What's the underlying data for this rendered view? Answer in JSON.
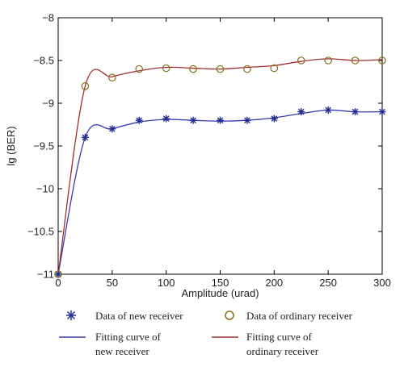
{
  "chart_data": {
    "type": "line",
    "title": "",
    "xlabel": "Amplitude (urad)",
    "ylabel": "lg (BER)",
    "xlim": [
      0,
      300
    ],
    "ylim": [
      -11,
      -8
    ],
    "xticks": [
      0,
      50,
      100,
      150,
      200,
      250,
      300
    ],
    "yticks": [
      -11,
      -10.5,
      -10,
      -9.5,
      -9,
      -8.5,
      -8
    ],
    "x": [
      0,
      25,
      50,
      75,
      100,
      125,
      150,
      175,
      200,
      225,
      250,
      275,
      300
    ],
    "grid": false,
    "legend_position": "bottom",
    "series": [
      {
        "name": "Data of new receiver",
        "kind": "markers",
        "marker": "star",
        "color": "#1f2f8f",
        "values": [
          -11.0,
          -9.4,
          -9.3,
          -9.2,
          -9.18,
          -9.2,
          -9.2,
          -9.2,
          -9.18,
          -9.1,
          -9.08,
          -9.1,
          -9.1
        ]
      },
      {
        "name": "Data of ordinary receiver",
        "kind": "markers",
        "marker": "circle",
        "color": "#8a6d1a",
        "values": [
          -11.0,
          -8.8,
          -8.7,
          -8.6,
          -8.59,
          -8.6,
          -8.6,
          -8.6,
          -8.59,
          -8.5,
          -8.5,
          -8.5,
          -8.5
        ]
      },
      {
        "name": "Fitting curve of new receiver",
        "kind": "line",
        "color": "#3a3ab0",
        "values": [
          -11.0,
          -9.4,
          -9.3,
          -9.22,
          -9.19,
          -9.2,
          -9.21,
          -9.2,
          -9.17,
          -9.12,
          -9.08,
          -9.1,
          -9.1
        ]
      },
      {
        "name": "Fitting curve of ordinary receiver",
        "kind": "line",
        "color": "#a03030",
        "values": [
          -11.0,
          -8.8,
          -8.69,
          -8.62,
          -8.58,
          -8.59,
          -8.6,
          -8.58,
          -8.56,
          -8.51,
          -8.48,
          -8.5,
          -8.49
        ]
      }
    ]
  },
  "legend": {
    "new_data_label": "Data of new receiver",
    "ordinary_data_label": "Data of ordinary receiver",
    "new_fit_label_line1": "Fitting curve of",
    "new_fit_label_line2": "new receiver",
    "ordinary_fit_label_line1": "Fitting curve of",
    "ordinary_fit_label_line2": "ordinary receiver"
  }
}
